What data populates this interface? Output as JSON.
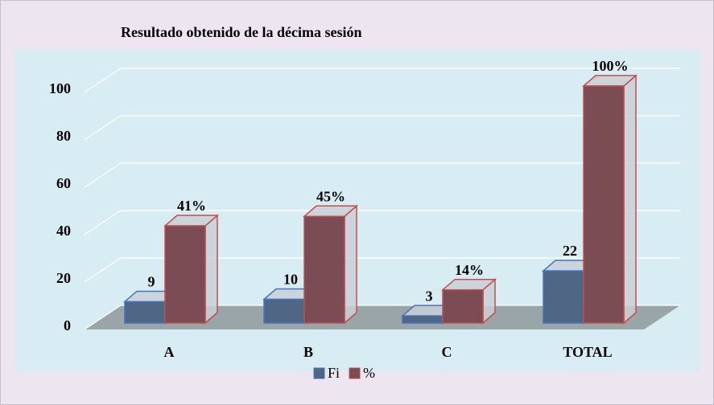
{
  "chart_data": {
    "type": "bar3d",
    "title": "Resultado obtenido de la décima sesión",
    "categories": [
      "A",
      "B",
      "C",
      "TOTAL"
    ],
    "series": [
      {
        "name": "Fi",
        "color": "#4f6684",
        "edge": "#4472c4",
        "values": [
          9,
          10,
          3,
          22
        ]
      },
      {
        "name": "%",
        "color": "#7b4c54",
        "edge": "#c0504d",
        "values": [
          41,
          45,
          14,
          100
        ],
        "value_labels": [
          "41%",
          "45%",
          "14%",
          "100%"
        ]
      }
    ],
    "ylim": [
      0,
      100
    ],
    "yticks": [
      0,
      20,
      40,
      60,
      80,
      100
    ],
    "grid": true,
    "legend": "bottom"
  }
}
